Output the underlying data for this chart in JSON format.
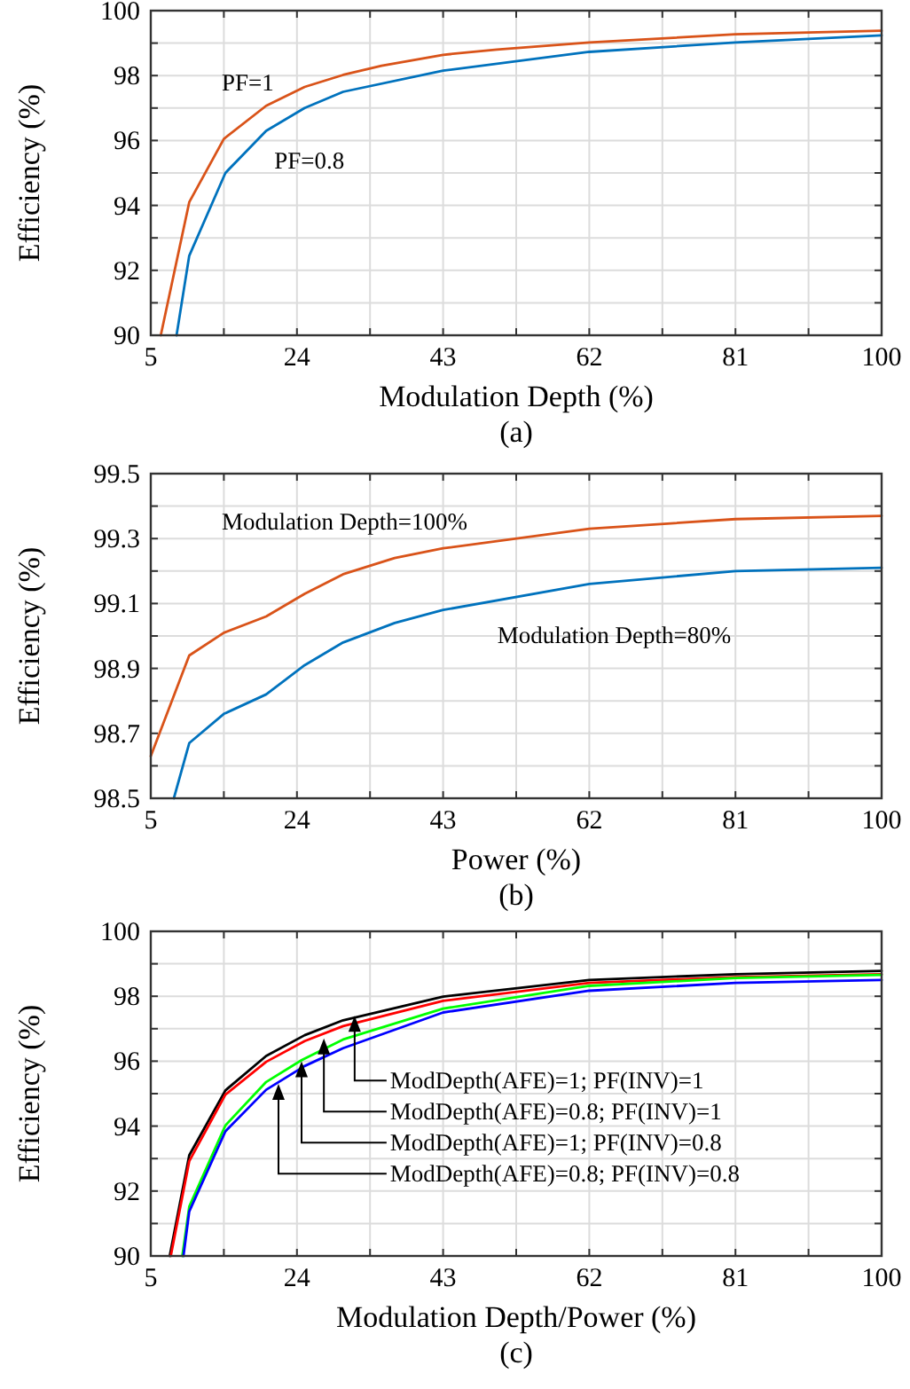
{
  "chart_data": [
    {
      "type": "line",
      "title": "(a)",
      "xlabel": "Modulation Depth (%)",
      "ylabel": "Efficiency (%)",
      "xlim": [
        5,
        100
      ],
      "ylim": [
        90,
        100
      ],
      "xticks": [
        5,
        {
          "value": 14.5,
          "label": null
        },
        24,
        {
          "value": 33.5,
          "label": null
        },
        43,
        {
          "value": 52.5,
          "label": null
        },
        62,
        {
          "value": 71.5,
          "label": null
        },
        81,
        {
          "value": 90.5,
          "label": null
        },
        100
      ],
      "yticks": [
        90,
        {
          "value": 91,
          "label": null
        },
        92,
        {
          "value": 93,
          "label": null
        },
        94,
        {
          "value": 95,
          "label": null
        },
        96,
        {
          "value": 97,
          "label": null
        },
        98,
        {
          "value": 99,
          "label": null
        },
        100
      ],
      "grid": true,
      "line_style": "solid",
      "marker": "none",
      "series": [
        {
          "name": "PF=1",
          "color": "#d95319",
          "x": [
            6.3,
            10,
            14.5,
            20,
            25,
            30,
            35,
            43,
            50,
            62,
            81,
            100
          ],
          "values": [
            90,
            94.1,
            96.05,
            97.07,
            97.65,
            98.02,
            98.3,
            98.64,
            98.8,
            99.02,
            99.27,
            99.38
          ]
        },
        {
          "name": "PF=0.8",
          "color": "#0072bd",
          "x": [
            8.35,
            10,
            14.7,
            20,
            25,
            30,
            43,
            62,
            81,
            100
          ],
          "values": [
            90,
            92.45,
            95.0,
            96.3,
            97.0,
            97.5,
            98.15,
            98.73,
            99.02,
            99.24
          ]
        }
      ]
    },
    {
      "type": "line",
      "title": "(b)",
      "xlabel": "Power (%)",
      "ylabel": "Efficiency (%)",
      "xlim": [
        5,
        100
      ],
      "ylim": [
        98.5,
        99.5
      ],
      "xticks": [
        5,
        {
          "value": 14.5,
          "label": null
        },
        24,
        {
          "value": 33.5,
          "label": null
        },
        43,
        {
          "value": 52.5,
          "label": null
        },
        62,
        {
          "value": 71.5,
          "label": null
        },
        81,
        {
          "value": 90.5,
          "label": null
        },
        100
      ],
      "yticks": [
        98.5,
        {
          "value": 98.6,
          "label": null
        },
        98.7,
        {
          "value": 98.8,
          "label": null
        },
        98.9,
        {
          "value": 99.0,
          "label": null
        },
        99.1,
        {
          "value": 99.2,
          "label": null
        },
        99.3,
        {
          "value": 99.4,
          "label": null
        },
        99.5
      ],
      "grid": true,
      "line_style": "solid",
      "marker": "none",
      "series": [
        {
          "name": "Modulation Depth=100%",
          "color": "#d95319",
          "x": [
            5,
            10,
            14.5,
            20,
            25,
            30,
            36.7,
            43,
            62,
            81,
            100
          ],
          "values": [
            98.63,
            98.94,
            99.01,
            99.06,
            99.13,
            99.19,
            99.24,
            99.27,
            99.33,
            99.36,
            99.37
          ]
        },
        {
          "name": "Modulation Depth=80%",
          "color": "#0072bd",
          "x": [
            8,
            10,
            14.5,
            20,
            25,
            30,
            36.7,
            43,
            62,
            81,
            100
          ],
          "values": [
            98.5,
            98.67,
            98.76,
            98.82,
            98.91,
            98.98,
            99.04,
            99.08,
            99.16,
            99.2,
            99.21
          ]
        }
      ]
    },
    {
      "type": "line",
      "title": "(c)",
      "xlabel": "Modulation Depth/Power (%)",
      "ylabel": "Efficiency (%)",
      "xlim": [
        5,
        100
      ],
      "ylim": [
        90,
        100
      ],
      "xticks": [
        5,
        {
          "value": 14.5,
          "label": null
        },
        24,
        {
          "value": 33.5,
          "label": null
        },
        43,
        {
          "value": 52.5,
          "label": null
        },
        62,
        {
          "value": 71.5,
          "label": null
        },
        81,
        {
          "value": 90.5,
          "label": null
        },
        100
      ],
      "yticks": [
        90,
        {
          "value": 91,
          "label": null
        },
        92,
        {
          "value": 93,
          "label": null
        },
        94,
        {
          "value": 95,
          "label": null
        },
        96,
        {
          "value": 97,
          "label": null
        },
        98,
        {
          "value": 99,
          "label": null
        },
        100
      ],
      "grid": true,
      "line_style": "solid",
      "marker": "none",
      "series": [
        {
          "color": "#000000",
          "x": [
            7.46,
            10,
            14.7,
            20,
            25,
            30,
            43,
            62,
            81,
            100
          ],
          "values": [
            90,
            93.1,
            95.1,
            96.16,
            96.8,
            97.26,
            97.99,
            98.5,
            98.68,
            98.78
          ]
        },
        {
          "color": "#ff0000",
          "x": [
            7.6,
            10,
            14.7,
            20,
            25,
            30,
            43,
            62,
            81,
            100
          ],
          "values": [
            90,
            92.92,
            94.97,
            95.98,
            96.62,
            97.08,
            97.86,
            98.41,
            98.59,
            98.68
          ]
        },
        {
          "color": "#00ff00",
          "x": [
            9.1,
            10,
            14.7,
            20,
            24.6,
            30,
            43,
            62,
            81,
            100
          ],
          "values": [
            90,
            91.52,
            94.02,
            95.36,
            96.03,
            96.67,
            97.62,
            98.32,
            98.56,
            98.66
          ]
        },
        {
          "color": "#0000ff",
          "x": [
            9.25,
            10,
            14.7,
            20,
            25,
            30,
            43,
            62,
            81,
            100
          ],
          "values": [
            90,
            91.37,
            93.84,
            95.12,
            95.85,
            96.4,
            97.5,
            98.17,
            98.41,
            98.5
          ]
        }
      ],
      "annotations": [
        {
          "text": "ModDepth(AFE)=1; PF(INV)=1",
          "x": 31.5,
          "y": 97.4
        },
        {
          "text": "ModDepth(AFE)=0.8; PF(INV)=1",
          "x": 27.5,
          "y": 96.7
        },
        {
          "text": "ModDepth(AFE)=1; PF(INV)=0.8",
          "x": 24.6,
          "y": 96.0
        },
        {
          "text": "ModDepth(AFE)=0.8; PF(INV)=0.8",
          "x": 21.6,
          "y": 95.3
        }
      ]
    }
  ]
}
